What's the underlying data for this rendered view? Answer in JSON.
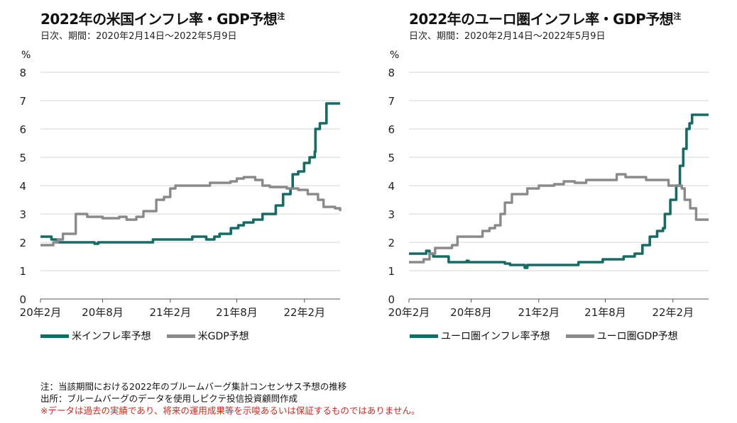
{
  "panels": [
    {
      "title": "2022年の米国インフレ率・GDP予想",
      "title_note": "注",
      "subtitle": "日次、期間：2020年2月14日～2022年5月9日",
      "unit": "%"
    },
    {
      "title": "2022年のユーロ圏インフレ率・GDP予想",
      "title_note": "注",
      "subtitle": "日次、期間：2020年2月14日～2022年5月9日",
      "unit": "%"
    }
  ],
  "footnotes": {
    "note": "注：当該期間における2022年のブルームバーグ集計コンセンサス予想の推移",
    "source": "出所：ブルームバーグのデータを使用しピクテ投信投資顧問作成",
    "disclaimer": "※データは過去の実績であり、将来の運用成果等を示唆あるいは保証するものではありません。"
  },
  "colors": {
    "inflation": "#156c65",
    "gdp": "#8a8a8a",
    "grid": "#d6d6d6",
    "disclaimer": "#d1261c"
  },
  "chart_data": [
    {
      "type": "line",
      "title": "2022年の米国インフレ率・GDP予想",
      "ylabel": "%",
      "ylim": [
        0,
        8
      ],
      "yticks": [
        "0",
        "1",
        "2",
        "3",
        "4",
        "5",
        "6",
        "7",
        "8"
      ],
      "xlim": [
        "2020-02-14",
        "2022-05-09"
      ],
      "xticks": [
        {
          "label": "20年2月",
          "date": "2020-02-01"
        },
        {
          "label": "20年8月",
          "date": "2020-08-01"
        },
        {
          "label": "21年2月",
          "date": "2021-02-01"
        },
        {
          "label": "21年8月",
          "date": "2021-08-01"
        },
        {
          "label": "22年2月",
          "date": "2022-02-01"
        }
      ],
      "grid": true,
      "legend_position": "bottom-left",
      "series": [
        {
          "name": "米インフレ率予想",
          "color": "#156c65",
          "points": [
            [
              "2020-02-14",
              2.2
            ],
            [
              "2020-03-05",
              2.2
            ],
            [
              "2020-03-15",
              2.1
            ],
            [
              "2020-03-30",
              2.0
            ],
            [
              "2020-06-30",
              2.0
            ],
            [
              "2020-07-10",
              1.95
            ],
            [
              "2020-07-20",
              2.0
            ],
            [
              "2020-12-15",
              2.0
            ],
            [
              "2020-12-16",
              2.1
            ],
            [
              "2021-04-01",
              2.1
            ],
            [
              "2021-04-02",
              2.2
            ],
            [
              "2021-05-01",
              2.2
            ],
            [
              "2021-05-10",
              2.1
            ],
            [
              "2021-06-01",
              2.2
            ],
            [
              "2021-06-15",
              2.3
            ],
            [
              "2021-07-15",
              2.3
            ],
            [
              "2021-07-16",
              2.5
            ],
            [
              "2021-08-05",
              2.6
            ],
            [
              "2021-08-20",
              2.7
            ],
            [
              "2021-09-15",
              2.8
            ],
            [
              "2021-10-10",
              3.0
            ],
            [
              "2021-11-10",
              3.0
            ],
            [
              "2021-11-15",
              3.3
            ],
            [
              "2021-12-01",
              3.3
            ],
            [
              "2021-12-05",
              3.7
            ],
            [
              "2021-12-25",
              3.9
            ],
            [
              "2021-12-31",
              4.4
            ],
            [
              "2022-01-15",
              4.5
            ],
            [
              "2022-01-31",
              4.8
            ],
            [
              "2022-02-15",
              5.0
            ],
            [
              "2022-03-01",
              5.2
            ],
            [
              "2022-03-03",
              6.0
            ],
            [
              "2022-03-15",
              6.2
            ],
            [
              "2022-03-31",
              6.2
            ],
            [
              "2022-04-02",
              6.9
            ],
            [
              "2022-05-09",
              6.9
            ]
          ]
        },
        {
          "name": "米GDP予想",
          "color": "#8a8a8a",
          "points": [
            [
              "2020-02-14",
              1.9
            ],
            [
              "2020-03-10",
              1.9
            ],
            [
              "2020-03-20",
              2.0
            ],
            [
              "2020-04-01",
              2.1
            ],
            [
              "2020-04-15",
              2.3
            ],
            [
              "2020-05-15",
              2.3
            ],
            [
              "2020-05-20",
              3.0
            ],
            [
              "2020-06-15",
              3.0
            ],
            [
              "2020-06-20",
              2.9
            ],
            [
              "2020-07-20",
              2.9
            ],
            [
              "2020-08-01",
              2.85
            ],
            [
              "2020-09-01",
              2.85
            ],
            [
              "2020-09-15",
              2.9
            ],
            [
              "2020-10-05",
              2.8
            ],
            [
              "2020-11-01",
              2.9
            ],
            [
              "2020-11-20",
              3.1
            ],
            [
              "2020-12-10",
              3.1
            ],
            [
              "2020-12-25",
              3.5
            ],
            [
              "2021-01-15",
              3.6
            ],
            [
              "2021-02-01",
              3.9
            ],
            [
              "2021-02-15",
              4.0
            ],
            [
              "2021-05-10",
              4.0
            ],
            [
              "2021-05-20",
              4.1
            ],
            [
              "2021-07-15",
              4.15
            ],
            [
              "2021-08-01",
              4.25
            ],
            [
              "2021-08-20",
              4.3
            ],
            [
              "2021-09-20",
              4.2
            ],
            [
              "2021-10-10",
              4.0
            ],
            [
              "2021-10-30",
              3.95
            ],
            [
              "2021-12-15",
              3.9
            ],
            [
              "2022-01-15",
              3.85
            ],
            [
              "2022-02-10",
              3.7
            ],
            [
              "2022-03-10",
              3.5
            ],
            [
              "2022-03-25",
              3.25
            ],
            [
              "2022-04-25",
              3.2
            ],
            [
              "2022-05-09",
              3.1
            ]
          ]
        }
      ]
    },
    {
      "type": "line",
      "title": "2022年のユーロ圏インフレ率・GDP予想",
      "ylabel": "%",
      "ylim": [
        0,
        8
      ],
      "yticks": [
        "0",
        "1",
        "2",
        "3",
        "4",
        "5",
        "6",
        "7",
        "8"
      ],
      "xlim": [
        "2020-02-14",
        "2022-05-09"
      ],
      "xticks": [
        {
          "label": "20年2月",
          "date": "2020-02-01"
        },
        {
          "label": "20年8月",
          "date": "2020-08-01"
        },
        {
          "label": "21年2月",
          "date": "2021-02-01"
        },
        {
          "label": "21年8月",
          "date": "2021-08-01"
        },
        {
          "label": "22年2月",
          "date": "2022-02-01"
        }
      ],
      "grid": true,
      "legend_position": "bottom-left",
      "series": [
        {
          "name": "ユーロ圏インフレ率予想",
          "color": "#156c65",
          "points": [
            [
              "2020-02-14",
              1.6
            ],
            [
              "2020-03-25",
              1.6
            ],
            [
              "2020-04-01",
              1.7
            ],
            [
              "2020-04-10",
              1.6
            ],
            [
              "2020-04-20",
              1.5
            ],
            [
              "2020-05-20",
              1.5
            ],
            [
              "2020-06-01",
              1.3
            ],
            [
              "2020-07-15",
              1.3
            ],
            [
              "2020-07-20",
              1.35
            ],
            [
              "2020-07-25",
              1.3
            ],
            [
              "2020-10-20",
              1.3
            ],
            [
              "2020-11-01",
              1.25
            ],
            [
              "2020-11-15",
              1.2
            ],
            [
              "2020-12-20",
              1.2
            ],
            [
              "2020-12-25",
              1.1
            ],
            [
              "2021-01-01",
              1.2
            ],
            [
              "2021-05-15",
              1.2
            ],
            [
              "2021-05-20",
              1.3
            ],
            [
              "2021-07-20",
              1.3
            ],
            [
              "2021-07-25",
              1.4
            ],
            [
              "2021-09-20",
              1.5
            ],
            [
              "2021-10-20",
              1.6
            ],
            [
              "2021-11-10",
              1.9
            ],
            [
              "2021-11-30",
              2.2
            ],
            [
              "2021-12-20",
              2.4
            ],
            [
              "2022-01-05",
              2.5
            ],
            [
              "2022-01-10",
              3.0
            ],
            [
              "2022-01-25",
              3.5
            ],
            [
              "2022-02-10",
              4.0
            ],
            [
              "2022-02-20",
              4.7
            ],
            [
              "2022-03-01",
              5.3
            ],
            [
              "2022-03-10",
              6.0
            ],
            [
              "2022-03-18",
              6.2
            ],
            [
              "2022-03-25",
              6.5
            ],
            [
              "2022-05-09",
              6.5
            ]
          ]
        },
        {
          "name": "ユーロ圏GDP予想",
          "color": "#8a8a8a",
          "points": [
            [
              "2020-02-14",
              1.3
            ],
            [
              "2020-03-10",
              1.3
            ],
            [
              "2020-03-25",
              1.4
            ],
            [
              "2020-04-10",
              1.6
            ],
            [
              "2020-04-25",
              1.8
            ],
            [
              "2020-06-01",
              1.8
            ],
            [
              "2020-06-10",
              1.9
            ],
            [
              "2020-06-25",
              2.2
            ],
            [
              "2020-08-01",
              2.2
            ],
            [
              "2020-09-01",
              2.4
            ],
            [
              "2020-09-20",
              2.5
            ],
            [
              "2020-10-05",
              2.6
            ],
            [
              "2020-10-20",
              3.0
            ],
            [
              "2020-11-01",
              3.4
            ],
            [
              "2020-11-20",
              3.7
            ],
            [
              "2021-01-01",
              3.9
            ],
            [
              "2021-02-01",
              4.0
            ],
            [
              "2021-03-15",
              4.05
            ],
            [
              "2021-04-10",
              4.15
            ],
            [
              "2021-05-10",
              4.1
            ],
            [
              "2021-06-10",
              4.2
            ],
            [
              "2021-08-25",
              4.2
            ],
            [
              "2021-09-01",
              4.4
            ],
            [
              "2021-09-25",
              4.3
            ],
            [
              "2021-11-20",
              4.2
            ],
            [
              "2022-01-10",
              4.2
            ],
            [
              "2022-01-20",
              4.0
            ],
            [
              "2022-02-25",
              3.9
            ],
            [
              "2022-03-05",
              3.5
            ],
            [
              "2022-03-20",
              3.2
            ],
            [
              "2022-04-05",
              2.8
            ],
            [
              "2022-05-09",
              2.8
            ]
          ]
        }
      ]
    }
  ]
}
